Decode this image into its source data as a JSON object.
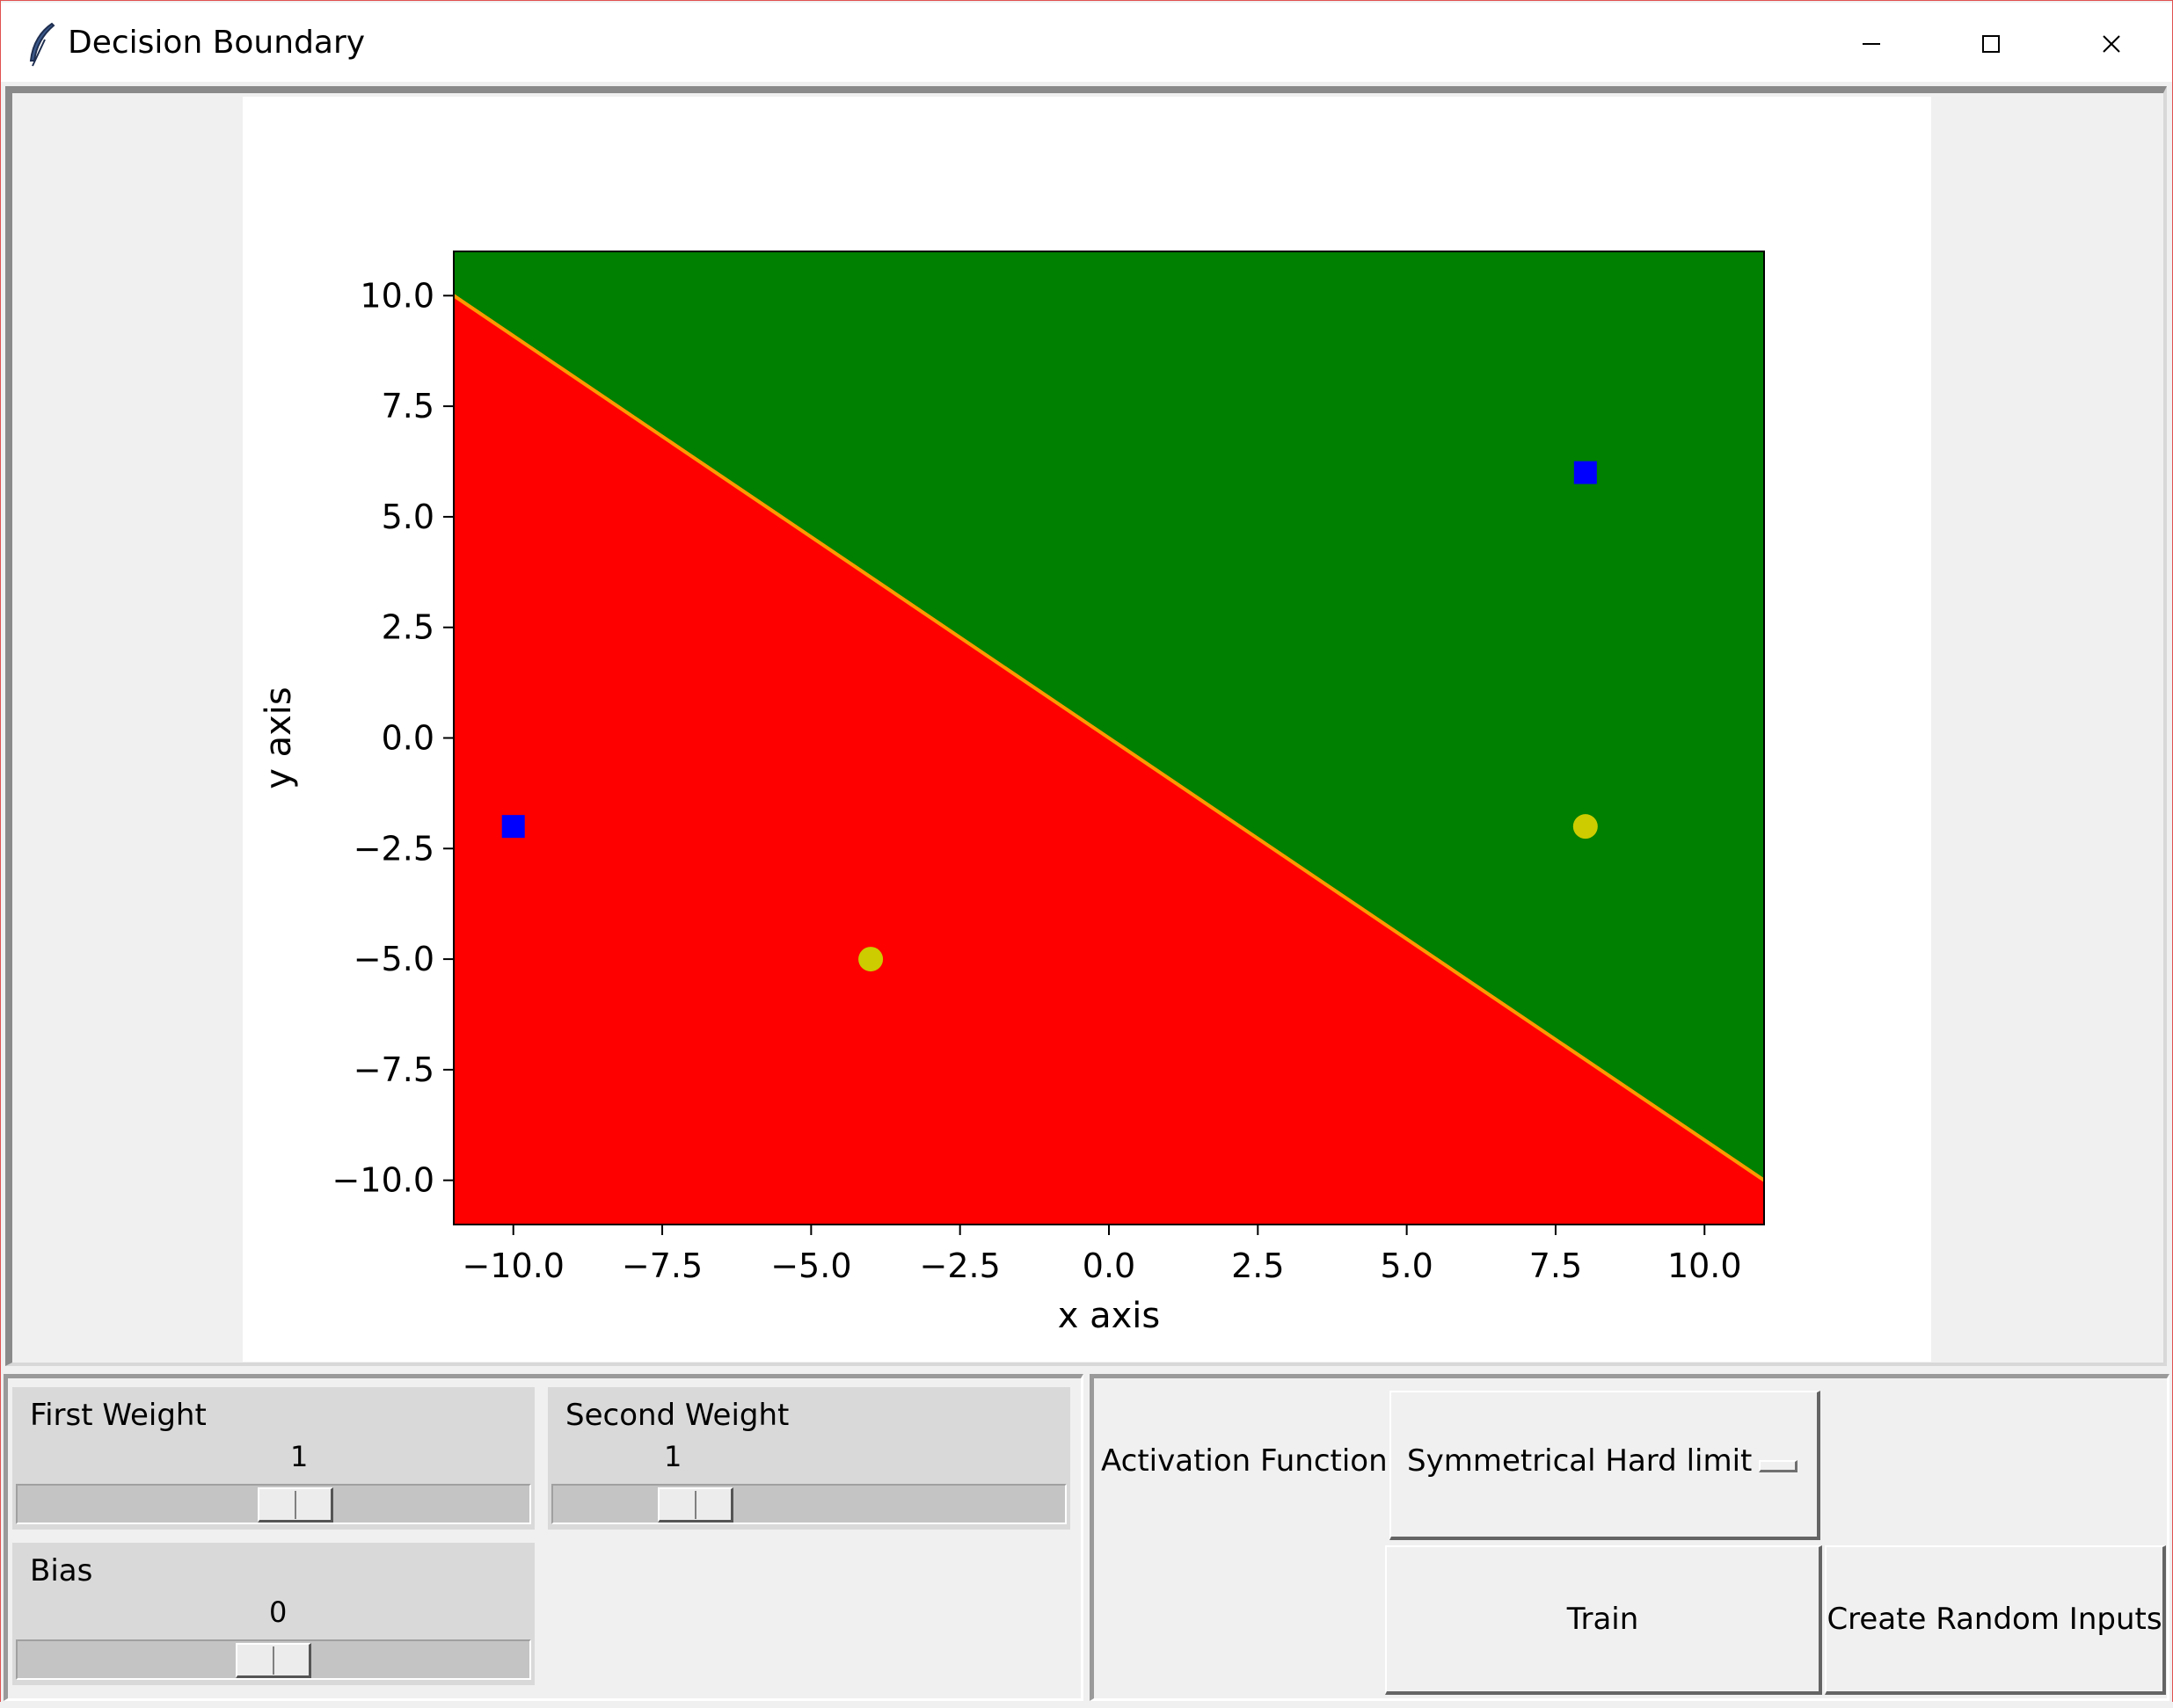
{
  "window": {
    "title": "Decision Boundary",
    "controls": [
      "minimize",
      "maximize",
      "close"
    ]
  },
  "chart_data": {
    "type": "scatter",
    "xlabel": "x axis",
    "ylabel": "y axis",
    "xlim": [
      -11,
      11
    ],
    "ylim": [
      -11,
      11
    ],
    "x_ticks": [
      -10.0,
      -7.5,
      -5.0,
      -2.5,
      0.0,
      2.5,
      5.0,
      7.5,
      10.0
    ],
    "y_ticks": [
      -10.0,
      -7.5,
      -5.0,
      -2.5,
      0.0,
      2.5,
      5.0,
      7.5,
      10.0
    ],
    "x_tick_labels": [
      "−10.0",
      "−7.5",
      "−5.0",
      "−2.5",
      "0.0",
      "2.5",
      "5.0",
      "7.5",
      "10.0"
    ],
    "y_tick_labels": [
      "−10.0",
      "−7.5",
      "−5.0",
      "−2.5",
      "0.0",
      "2.5",
      "5.0",
      "7.5",
      "10.0"
    ],
    "regions": {
      "above": "#008000",
      "below": "#ff0000"
    },
    "boundary": {
      "color": "#ff9900",
      "points": [
        [
          -11,
          10
        ],
        [
          11,
          -10
        ]
      ]
    },
    "series": [
      {
        "marker": "square",
        "color": "#0000ff",
        "points": [
          [
            8,
            6
          ],
          [
            -10,
            -2
          ]
        ]
      },
      {
        "marker": "circle",
        "color": "#cccc00",
        "points": [
          [
            8,
            -2
          ],
          [
            -4,
            -5
          ]
        ]
      }
    ],
    "grid": false
  },
  "controls": {
    "first_weight": {
      "label": "First Weight",
      "value": "1",
      "position": 0.55
    },
    "second_weight": {
      "label": "Second Weight",
      "value": "1",
      "position": 0.24
    },
    "bias": {
      "label": "Bias",
      "value": "0",
      "position": 0.5
    },
    "activation": {
      "label": "Activation Function",
      "selected": "Symmetrical Hard limit"
    },
    "train_label": "Train",
    "random_label": "Create Random Inputs"
  }
}
